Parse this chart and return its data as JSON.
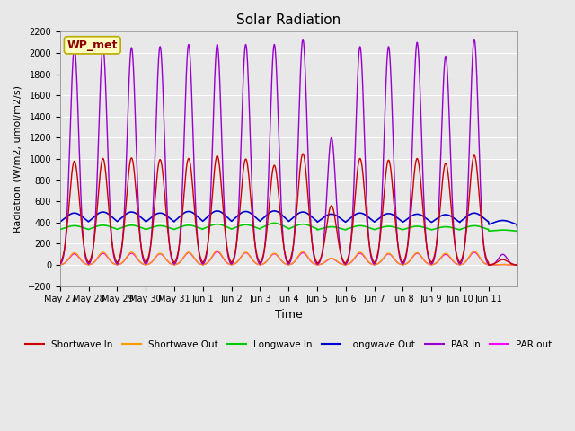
{
  "title": "Solar Radiation",
  "xlabel": "Time",
  "ylabel": "Radiation (W/m2, umol/m2/s)",
  "ylim": [
    -200,
    2200
  ],
  "yticks": [
    -200,
    0,
    200,
    400,
    600,
    800,
    1000,
    1200,
    1400,
    1600,
    1800,
    2000,
    2200
  ],
  "bg_color": "#e8e8e8",
  "fig_color": "#e8e8e8",
  "station_label": "WP_met",
  "x_tick_labels": [
    "May 27",
    "May 28",
    "May 29",
    "May 30",
    "May 31",
    "Jun 1",
    "Jun 2",
    "Jun 3",
    "Jun 4",
    "Jun 5",
    "Jun 6",
    "Jun 7",
    "Jun 8",
    "Jun 9",
    "Jun 10",
    "Jun 11"
  ],
  "series": {
    "shortwave_in": {
      "color": "#cc0000",
      "label": "Shortwave In",
      "day_peaks": [
        980,
        1005,
        1010,
        995,
        1005,
        1030,
        1000,
        940,
        1050,
        560,
        1005,
        990,
        1005,
        960,
        1035,
        50
      ]
    },
    "shortwave_out": {
      "color": "#ff9900",
      "label": "Shortwave Out",
      "day_peaks": [
        115,
        120,
        120,
        110,
        120,
        135,
        120,
        110,
        125,
        65,
        120,
        110,
        115,
        110,
        130,
        5
      ]
    },
    "longwave_in": {
      "color": "#00cc00",
      "label": "Longwave In",
      "base": 315,
      "day_peaks": [
        370,
        375,
        375,
        370,
        375,
        385,
        380,
        395,
        385,
        360,
        370,
        365,
        365,
        360,
        370,
        330
      ]
    },
    "longwave_out": {
      "color": "#0000cc",
      "label": "Longwave Out",
      "base": 360,
      "day_peaks": [
        490,
        500,
        500,
        490,
        505,
        510,
        505,
        510,
        500,
        480,
        490,
        485,
        480,
        475,
        490,
        420
      ]
    },
    "par_in": {
      "color": "#9900cc",
      "label": "PAR in",
      "day_peaks": [
        2050,
        2050,
        2050,
        2060,
        2080,
        2080,
        2080,
        2080,
        2130,
        1200,
        2060,
        2060,
        2100,
        1970,
        2130,
        100
      ]
    },
    "par_out": {
      "color": "#ff00ff",
      "label": "PAR out",
      "day_peaks": [
        105,
        110,
        110,
        105,
        115,
        125,
        115,
        105,
        115,
        60,
        110,
        105,
        110,
        100,
        120,
        5
      ]
    }
  }
}
